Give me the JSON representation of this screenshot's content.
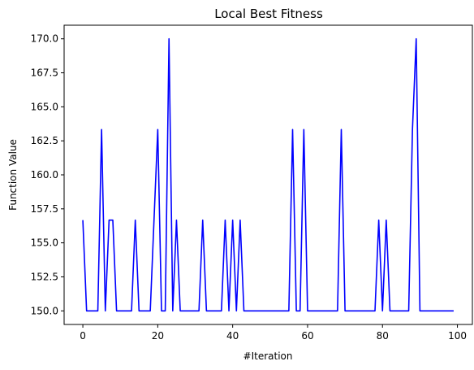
{
  "chart_data": {
    "type": "line",
    "title": "Local Best Fitness",
    "xlabel": "#Iteration",
    "ylabel": "Function Value",
    "xlim": [
      -5,
      104
    ],
    "ylim": [
      149.0,
      171.0
    ],
    "x_ticks": [
      0,
      20,
      40,
      60,
      80,
      100
    ],
    "y_ticks": [
      150.0,
      152.5,
      155.0,
      157.5,
      160.0,
      162.5,
      165.0,
      167.5,
      170.0
    ],
    "x_tick_labels": [
      "0",
      "20",
      "40",
      "60",
      "80",
      "100"
    ],
    "y_tick_labels": [
      "150.0",
      "152.5",
      "155.0",
      "157.5",
      "160.0",
      "162.5",
      "165.0",
      "167.5",
      "170.0"
    ],
    "grid": false,
    "series": [
      {
        "color": "#0000ff",
        "x": [
          0,
          1,
          2,
          3,
          4,
          5,
          6,
          7,
          8,
          9,
          10,
          11,
          12,
          13,
          14,
          15,
          16,
          17,
          18,
          19,
          20,
          21,
          22,
          23,
          24,
          25,
          26,
          27,
          28,
          29,
          30,
          31,
          32,
          33,
          34,
          35,
          36,
          37,
          38,
          39,
          40,
          41,
          42,
          43,
          44,
          45,
          46,
          47,
          48,
          49,
          50,
          51,
          52,
          53,
          54,
          55,
          56,
          57,
          58,
          59,
          60,
          61,
          62,
          63,
          64,
          65,
          66,
          67,
          68,
          69,
          70,
          71,
          72,
          73,
          74,
          75,
          76,
          77,
          78,
          79,
          80,
          81,
          82,
          83,
          84,
          85,
          86,
          87,
          88,
          89,
          90,
          91,
          92,
          93,
          94,
          95,
          96,
          97,
          98,
          99
        ],
        "values": [
          156.67,
          150,
          150,
          150,
          150,
          163.33,
          150,
          156.67,
          156.67,
          150,
          150,
          150,
          150,
          150,
          156.67,
          150,
          150,
          150,
          150,
          156.67,
          163.33,
          150,
          150,
          170,
          150,
          156.67,
          150,
          150,
          150,
          150,
          150,
          150,
          156.67,
          150,
          150,
          150,
          150,
          150,
          156.67,
          150,
          156.67,
          150,
          156.67,
          150,
          150,
          150,
          150,
          150,
          150,
          150,
          150,
          150,
          150,
          150,
          150,
          150,
          163.33,
          150,
          150,
          163.33,
          150,
          150,
          150,
          150,
          150,
          150,
          150,
          150,
          150,
          163.33,
          150,
          150,
          150,
          150,
          150,
          150,
          150,
          150,
          150,
          156.67,
          150,
          156.67,
          150,
          150,
          150,
          150,
          150,
          150,
          163.33,
          170,
          150,
          150,
          150,
          150,
          150,
          150,
          150,
          150,
          150,
          150
        ]
      }
    ]
  }
}
